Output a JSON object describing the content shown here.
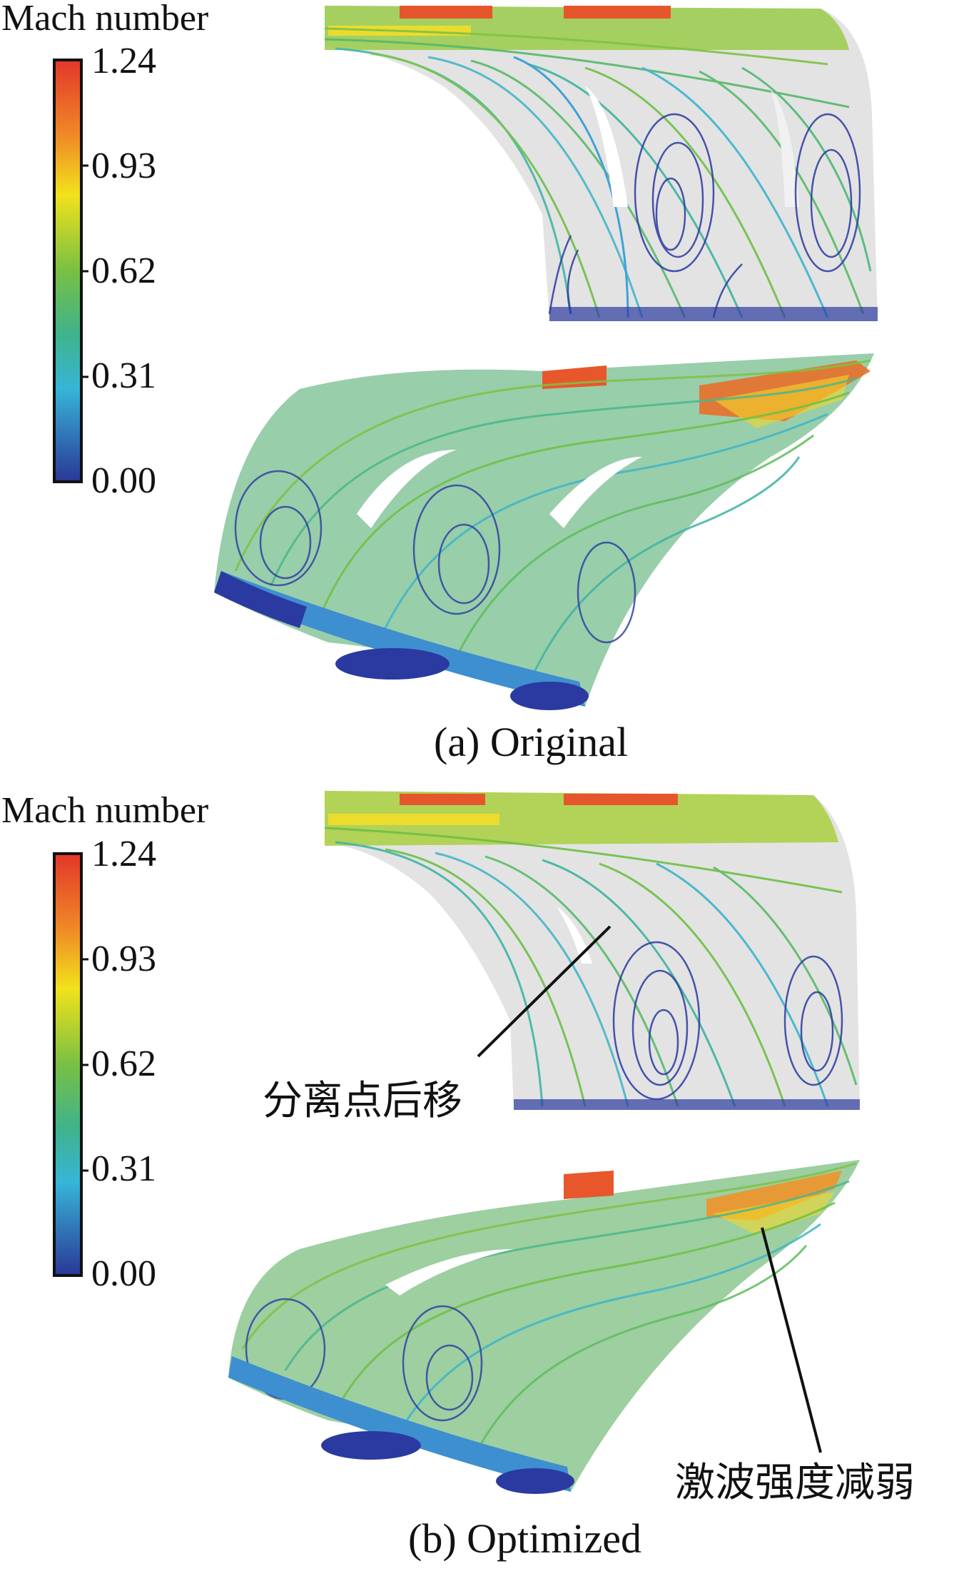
{
  "colorbar": {
    "title": "Mach number",
    "ticks": [
      "1.24",
      "0.93",
      "0.62",
      "0.31",
      "0.00"
    ],
    "colors": [
      "#e8402c",
      "#f08a26",
      "#f2e21b",
      "#8cc63f",
      "#45b86a",
      "#3fb6c8",
      "#2e8fd6",
      "#2b3aa0"
    ]
  },
  "panels": [
    {
      "caption": "(a) Original"
    },
    {
      "caption": "(b) Optimized",
      "annotations": [
        "分离点后移",
        "激波强度减弱"
      ]
    }
  ]
}
